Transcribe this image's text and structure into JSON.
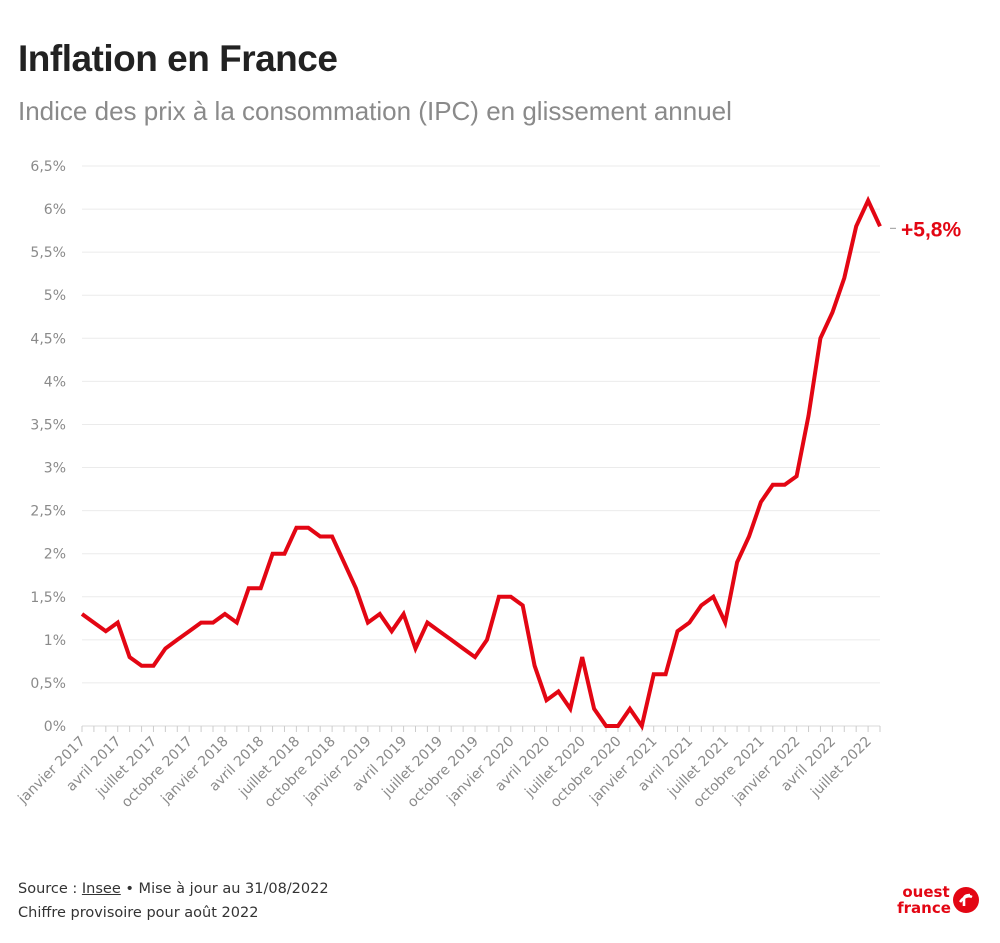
{
  "title": "Inflation en France",
  "subtitle": "Indice des prix à la consommation (IPC) en glissement annuel",
  "footer": {
    "source_prefix": "Source : ",
    "source_link": "Insee",
    "update_text": " • Mise à jour au 31/08/2022",
    "note": "Chiffre provisoire pour août 2022"
  },
  "logo": {
    "line1": "ouest",
    "line2": "france",
    "color": "#e30613"
  },
  "chart_data": {
    "type": "line",
    "line_color": "#e30613",
    "grid": true,
    "ylim": [
      0,
      6.5
    ],
    "y_ticks": [
      0,
      0.5,
      1,
      1.5,
      2,
      2.5,
      3,
      3.5,
      4,
      4.5,
      5,
      5.5,
      6,
      6.5
    ],
    "y_tick_labels": [
      "0%",
      "0,5%",
      "1%",
      "1,5%",
      "2%",
      "2,5%",
      "3%",
      "3,5%",
      "4%",
      "4,5%",
      "5%",
      "5,5%",
      "6%",
      "6,5%"
    ],
    "x_tick_labels": [
      "janvier 2017",
      "avril 2017",
      "juillet 2017",
      "octobre 2017",
      "janvier 2018",
      "avril 2018",
      "juillet 2018",
      "octobre 2018",
      "janvier 2019",
      "avril 2019",
      "juillet 2019",
      "octobre 2019",
      "janvier 2020",
      "avril 2020",
      "juillet 2020",
      "octobre 2020",
      "janvier 2021",
      "avril 2021",
      "juillet 2021",
      "octobre 2021",
      "janvier 2022",
      "avril 2022",
      "juillet 2022"
    ],
    "end_label": "+5,8%",
    "series": [
      {
        "values": [
          1.3,
          1.2,
          1.1,
          1.2,
          0.8,
          0.7,
          0.7,
          0.9,
          1.0,
          1.1,
          1.2,
          1.2,
          1.3,
          1.2,
          1.6,
          1.6,
          2.0,
          2.0,
          2.3,
          2.3,
          2.2,
          2.2,
          1.9,
          1.6,
          1.2,
          1.3,
          1.1,
          1.3,
          0.9,
          1.2,
          1.1,
          1.0,
          0.9,
          0.8,
          1.0,
          1.5,
          1.5,
          1.4,
          0.7,
          0.3,
          0.4,
          0.2,
          0.8,
          0.2,
          0.0,
          0.0,
          0.2,
          0.0,
          0.6,
          0.6,
          1.1,
          1.2,
          1.4,
          1.5,
          1.2,
          1.9,
          2.2,
          2.6,
          2.8,
          2.8,
          2.9,
          3.6,
          4.5,
          4.8,
          5.2,
          5.8,
          6.1,
          5.8
        ]
      }
    ]
  }
}
